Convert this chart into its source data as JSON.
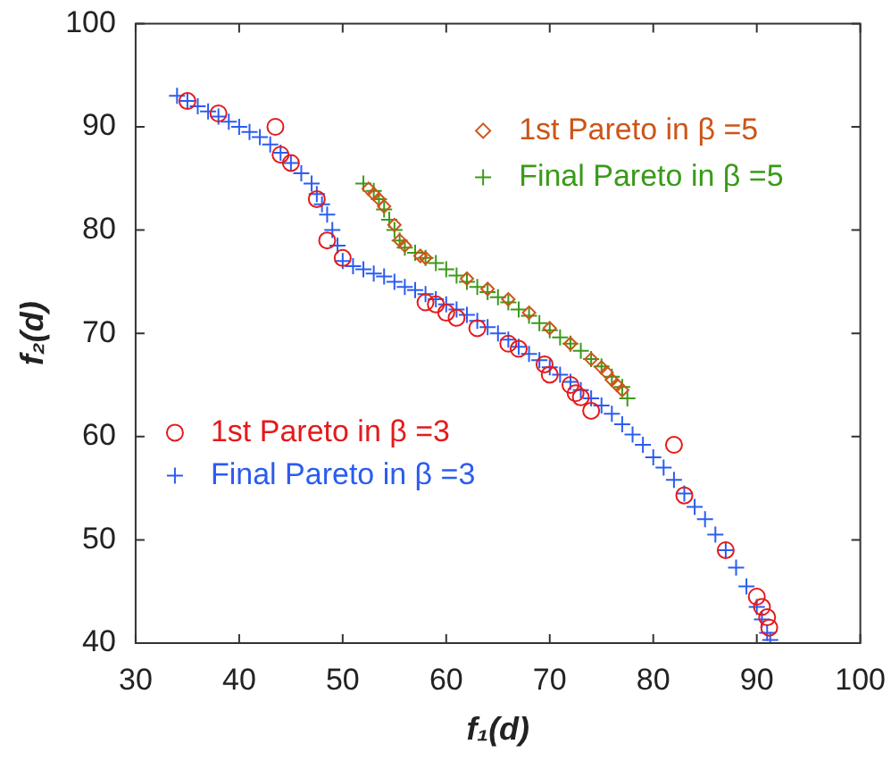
{
  "chart_data": {
    "type": "scatter",
    "xlabel": "f₁(d)",
    "ylabel": "f₂(d)",
    "xlim": [
      30,
      100
    ],
    "xticks": [
      30,
      40,
      50,
      60,
      70,
      80,
      90,
      100
    ],
    "ylim": [
      40,
      100
    ],
    "yticks": [
      40,
      50,
      60,
      70,
      80,
      90,
      100
    ],
    "grid": false,
    "legend": "top right",
    "series": [
      {
        "name": "1st Pareto in β =3",
        "color": "#e41a1c",
        "marker": "circle",
        "x": [
          35,
          38,
          43.5,
          44,
          45,
          47.5,
          48.5,
          50,
          58,
          59,
          60,
          61,
          63,
          66,
          67,
          69.5,
          70,
          72,
          72.5,
          73,
          74,
          82,
          83,
          87,
          90,
          90.5,
          91,
          91.2
        ],
        "values": [
          92.5,
          91.3,
          90,
          87.3,
          86.5,
          83,
          79,
          77.3,
          73,
          72.8,
          72,
          71.5,
          70.5,
          69,
          68.5,
          67,
          66,
          65,
          64.2,
          63.8,
          62.5,
          59.2,
          54.3,
          49,
          44.5,
          43.5,
          42.5,
          41.5
        ]
      },
      {
        "name": "Final Pareto in β =3",
        "color": "#2b5cf0",
        "marker": "cross",
        "x": [
          34,
          35,
          36,
          37,
          38,
          39,
          40,
          41,
          42,
          43,
          44,
          45,
          46,
          47,
          47.5,
          48,
          48.5,
          49,
          49.5,
          50,
          51,
          52,
          53,
          54,
          55,
          56,
          57,
          58,
          59,
          60,
          61,
          62,
          63,
          64,
          65,
          66,
          67,
          68,
          69,
          70,
          71,
          72,
          73,
          74,
          75,
          76,
          77,
          78,
          79,
          80,
          81,
          82,
          83,
          84,
          85,
          86,
          87,
          88,
          89,
          90,
          90.5,
          91,
          91.3
        ],
        "values": [
          93,
          92.5,
          92,
          91.5,
          91,
          90.5,
          90,
          89.5,
          89,
          88.3,
          87.5,
          86.5,
          85.5,
          84.5,
          83.5,
          82.5,
          81.5,
          80,
          78.5,
          77,
          76.5,
          76.2,
          75.8,
          75.5,
          75,
          74.5,
          74.2,
          73.8,
          73.3,
          72.8,
          72.3,
          71.8,
          71.2,
          70.6,
          70,
          69.4,
          68.7,
          68,
          67.4,
          66.7,
          66,
          65.3,
          64.5,
          63.7,
          63,
          62.2,
          61.2,
          60.2,
          59.2,
          58,
          57,
          55.8,
          54.5,
          53.2,
          52,
          50.5,
          49,
          47.3,
          45.5,
          43.5,
          42.3,
          41,
          40.3
        ]
      },
      {
        "name": "1st Pareto in β =5",
        "color": "#cc5518",
        "marker": "diamond",
        "x": [
          52.5,
          53,
          53.5,
          54,
          55,
          55.5,
          56,
          57.5,
          58,
          62,
          64,
          66,
          68,
          70,
          72,
          74,
          75,
          75.5,
          76,
          76.5,
          77
        ],
        "values": [
          84,
          83.5,
          83,
          82.3,
          80.5,
          79,
          78.5,
          77.5,
          77.3,
          75.3,
          74.3,
          73.3,
          72,
          70.5,
          69,
          67.5,
          66.7,
          66.2,
          65.5,
          65,
          64.5
        ]
      },
      {
        "name": "Final Pareto in β =5",
        "color": "#3a9a1a",
        "marker": "cross",
        "x": [
          52,
          53,
          53.5,
          54,
          54.5,
          55,
          55.5,
          56,
          57,
          58,
          59,
          60,
          61,
          62,
          63,
          64,
          65,
          66,
          67,
          68,
          69,
          70,
          71,
          72,
          73,
          74,
          75,
          76,
          77,
          77.5
        ],
        "values": [
          84.5,
          83.8,
          83,
          82,
          81,
          80,
          79,
          78.3,
          77.8,
          77.3,
          76.8,
          76.2,
          75.6,
          75,
          74.5,
          74,
          73.5,
          73,
          72.3,
          71.7,
          71,
          70.3,
          69.6,
          69,
          68.3,
          67.5,
          66.8,
          65.8,
          64.8,
          63.7
        ]
      }
    ]
  }
}
